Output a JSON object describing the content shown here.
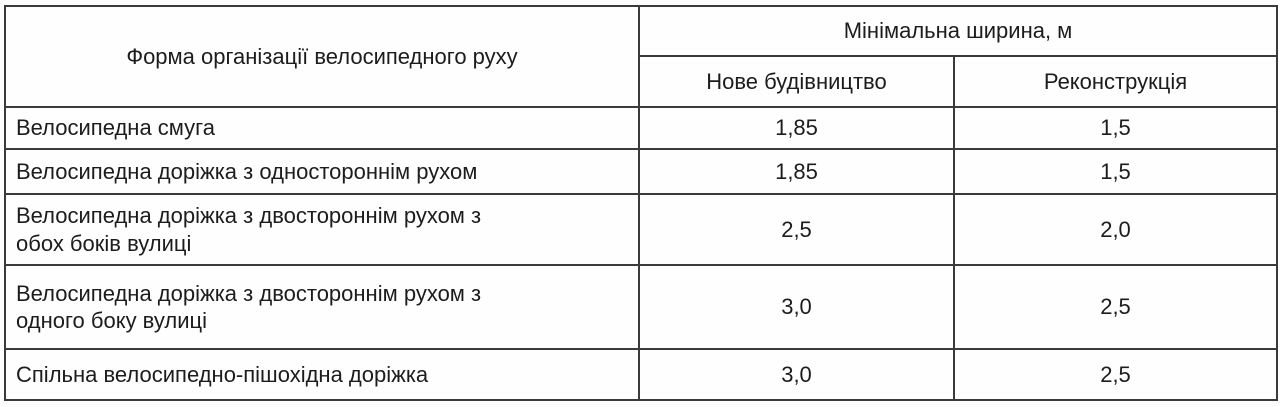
{
  "table": {
    "title_semantic": "minimum-bike-path-widths",
    "colors": {
      "border": "#3a3a3a",
      "text": "#1c1c1c",
      "background": "#fdfdfd",
      "cell_background": "#fefefe"
    },
    "header": {
      "form_column": "Форма організації велосипедного руху",
      "width_group": "Мінімальна ширина, м",
      "new_construction": "Нове будівництво",
      "reconstruction": "Реконструкція"
    },
    "rows": [
      {
        "label": "Велосипедна смуга",
        "new_construction": "1,85",
        "reconstruction": "1,5"
      },
      {
        "label": "Велосипедна доріжка з одностороннім рухом",
        "new_construction": "1,85",
        "reconstruction": "1,5"
      },
      {
        "label": "Велосипедна доріжка з двостороннім рухом з\nобох боків вулиці",
        "new_construction": "2,5",
        "reconstruction": "2,0"
      },
      {
        "label": "Велосипедна доріжка з двостороннім рухом з\nодного боку вулиці",
        "new_construction": "3,0",
        "reconstruction": "2,5"
      },
      {
        "label": "Спільна велосипедно-пішохідна доріжка",
        "new_construction": "3,0",
        "reconstruction": "2,5"
      }
    ]
  }
}
